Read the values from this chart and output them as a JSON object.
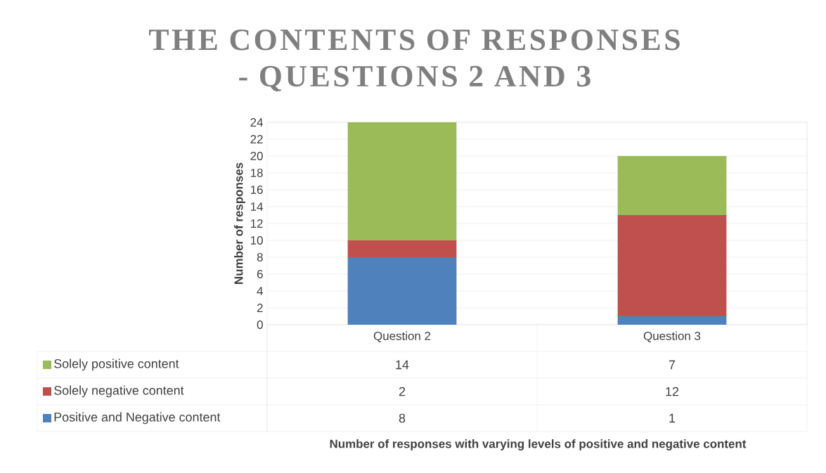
{
  "chart_data": {
    "type": "bar",
    "stacked": true,
    "title": "THE CONTENTS OF RESPONSES - QUESTIONS 2 AND 3",
    "annotations": [
      "Number of responses with varying levels of positive and negative content"
    ],
    "ylabel": "Number of responses",
    "categories": [
      "Question 2",
      "Question 3"
    ],
    "series": [
      {
        "name": "Positive and Negative content",
        "color": "#4f81bd",
        "values": [
          8,
          1
        ]
      },
      {
        "name": "Solely negative content",
        "color": "#c0504d",
        "values": [
          2,
          12
        ]
      },
      {
        "name": "Solely positive content",
        "color": "#9bbb59",
        "values": [
          14,
          7
        ]
      }
    ],
    "ylim": [
      0,
      24
    ],
    "yticks": [
      0,
      2,
      4,
      6,
      8,
      10,
      12,
      14,
      16,
      18,
      20,
      22,
      24
    ],
    "grid": "y",
    "legend": "bottom",
    "data_labels": true
  }
}
